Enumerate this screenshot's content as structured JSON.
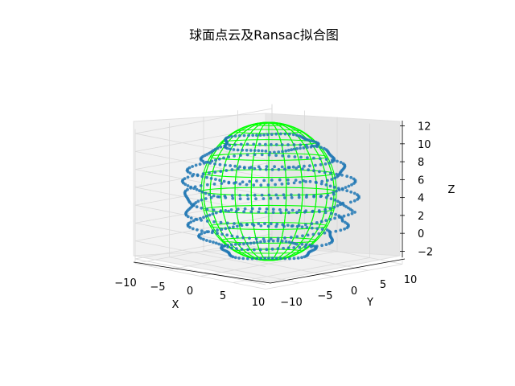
{
  "chart_data": {
    "type": "scatter3d",
    "title": "球面点云及Ransac拟合图",
    "xlabel": "X",
    "ylabel": "Y",
    "zlabel": "Z",
    "xlim": [
      -10,
      10
    ],
    "ylim": [
      -10,
      10
    ],
    "zlim": [
      -2.5,
      12.5
    ],
    "xticks": [
      "−10",
      "−5",
      "0",
      "5",
      "10"
    ],
    "yticks": [
      "−10",
      "−5",
      "0",
      "5",
      "10"
    ],
    "zticks": [
      "−2",
      "0",
      "2",
      "4",
      "6",
      "8",
      "10",
      "12"
    ],
    "grid": true,
    "colors": {
      "points": "#1f77b4",
      "sphere": "#00ff00"
    },
    "sphere_fit": {
      "center": [
        0,
        0,
        5
      ],
      "radius": 7,
      "wireframe": true
    },
    "point_cloud": {
      "description_rings": [
        {
          "z": -1,
          "r": 5.3
        },
        {
          "z": 0.5,
          "r": 7.6
        },
        {
          "z": 2,
          "r": 8.9
        },
        {
          "z": 3.5,
          "r": 9.6
        },
        {
          "z": 5,
          "r": 9.9
        },
        {
          "z": 6.5,
          "r": 9.6
        },
        {
          "z": 8,
          "r": 8.9
        },
        {
          "z": 9.5,
          "r": 7.6
        },
        {
          "z": 11,
          "r": 5.3
        }
      ]
    }
  }
}
